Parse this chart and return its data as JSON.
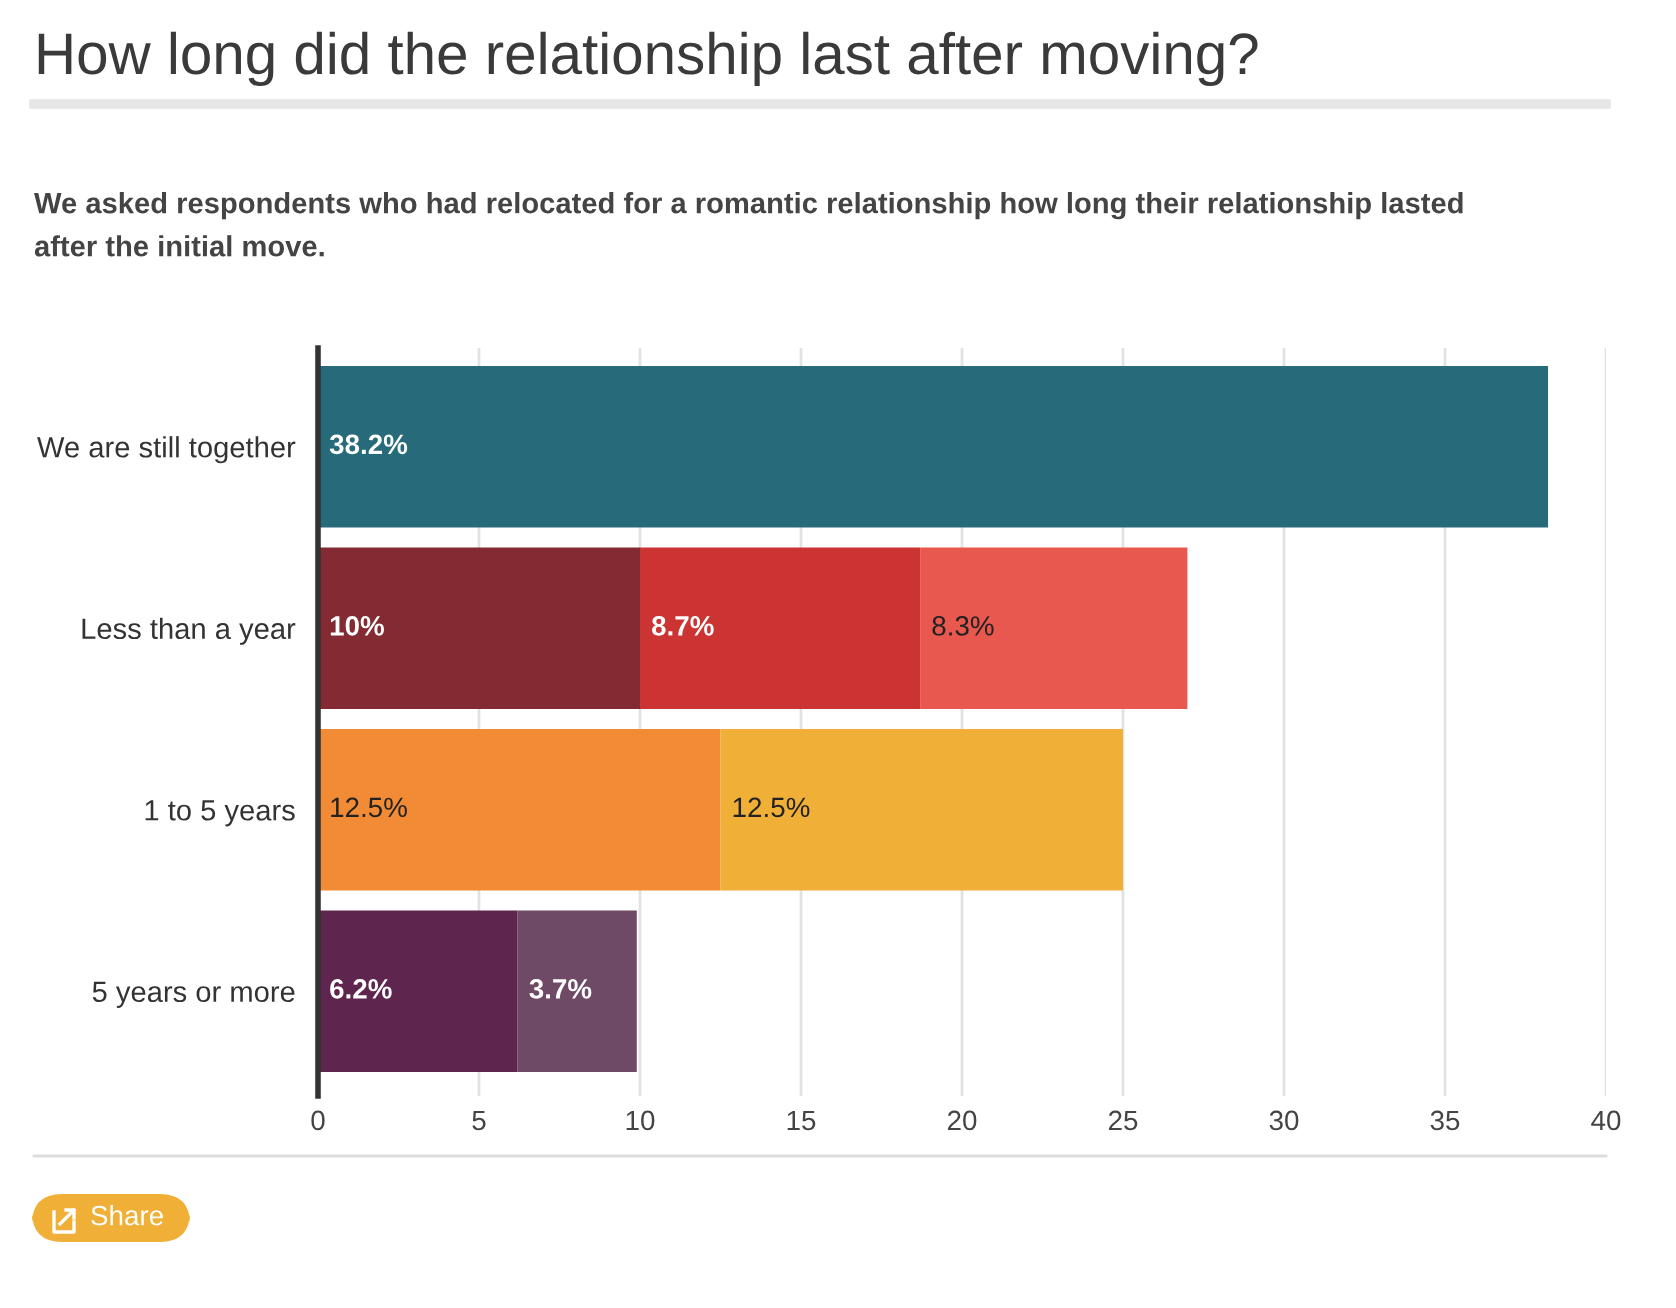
{
  "chart_data": {
    "type": "bar",
    "orientation": "horizontal",
    "stacked": true,
    "title": "How long did the relationship last after moving?",
    "subtitle": "We asked respondents who had relocated for a romantic relationship how long their relationship lasted\nafter the initial move.",
    "categories": [
      "We are still together",
      "Less than a year",
      "1 to 5 years",
      "5 years or more"
    ],
    "series": [
      {
        "colors": [
          "#276b7a",
          "#832a32",
          "#f28b36",
          "#5e264f"
        ],
        "values": [
          38.2,
          10,
          12.5,
          6.2
        ],
        "value_labels": [
          "38.2%",
          "10%",
          "12.5%",
          "6.2%"
        ]
      },
      {
        "colors": [
          null,
          "#cc3333",
          "#f0b037",
          "#6f4a67"
        ],
        "values": [
          null,
          8.7,
          12.5,
          3.7
        ],
        "value_labels": [
          null,
          "8.7%",
          "12.5%",
          "3.7%"
        ]
      },
      {
        "colors": [
          null,
          "#e8584f",
          null,
          null
        ],
        "values": [
          null,
          8.3,
          null,
          null
        ],
        "value_labels": [
          null,
          "8.3%",
          null,
          null
        ]
      }
    ],
    "xlim": [
      0,
      40
    ],
    "xticks": [
      0,
      5,
      10,
      15,
      20,
      25,
      30,
      35,
      40
    ],
    "grid": "x",
    "annotations": [
      "Share"
    ]
  }
}
